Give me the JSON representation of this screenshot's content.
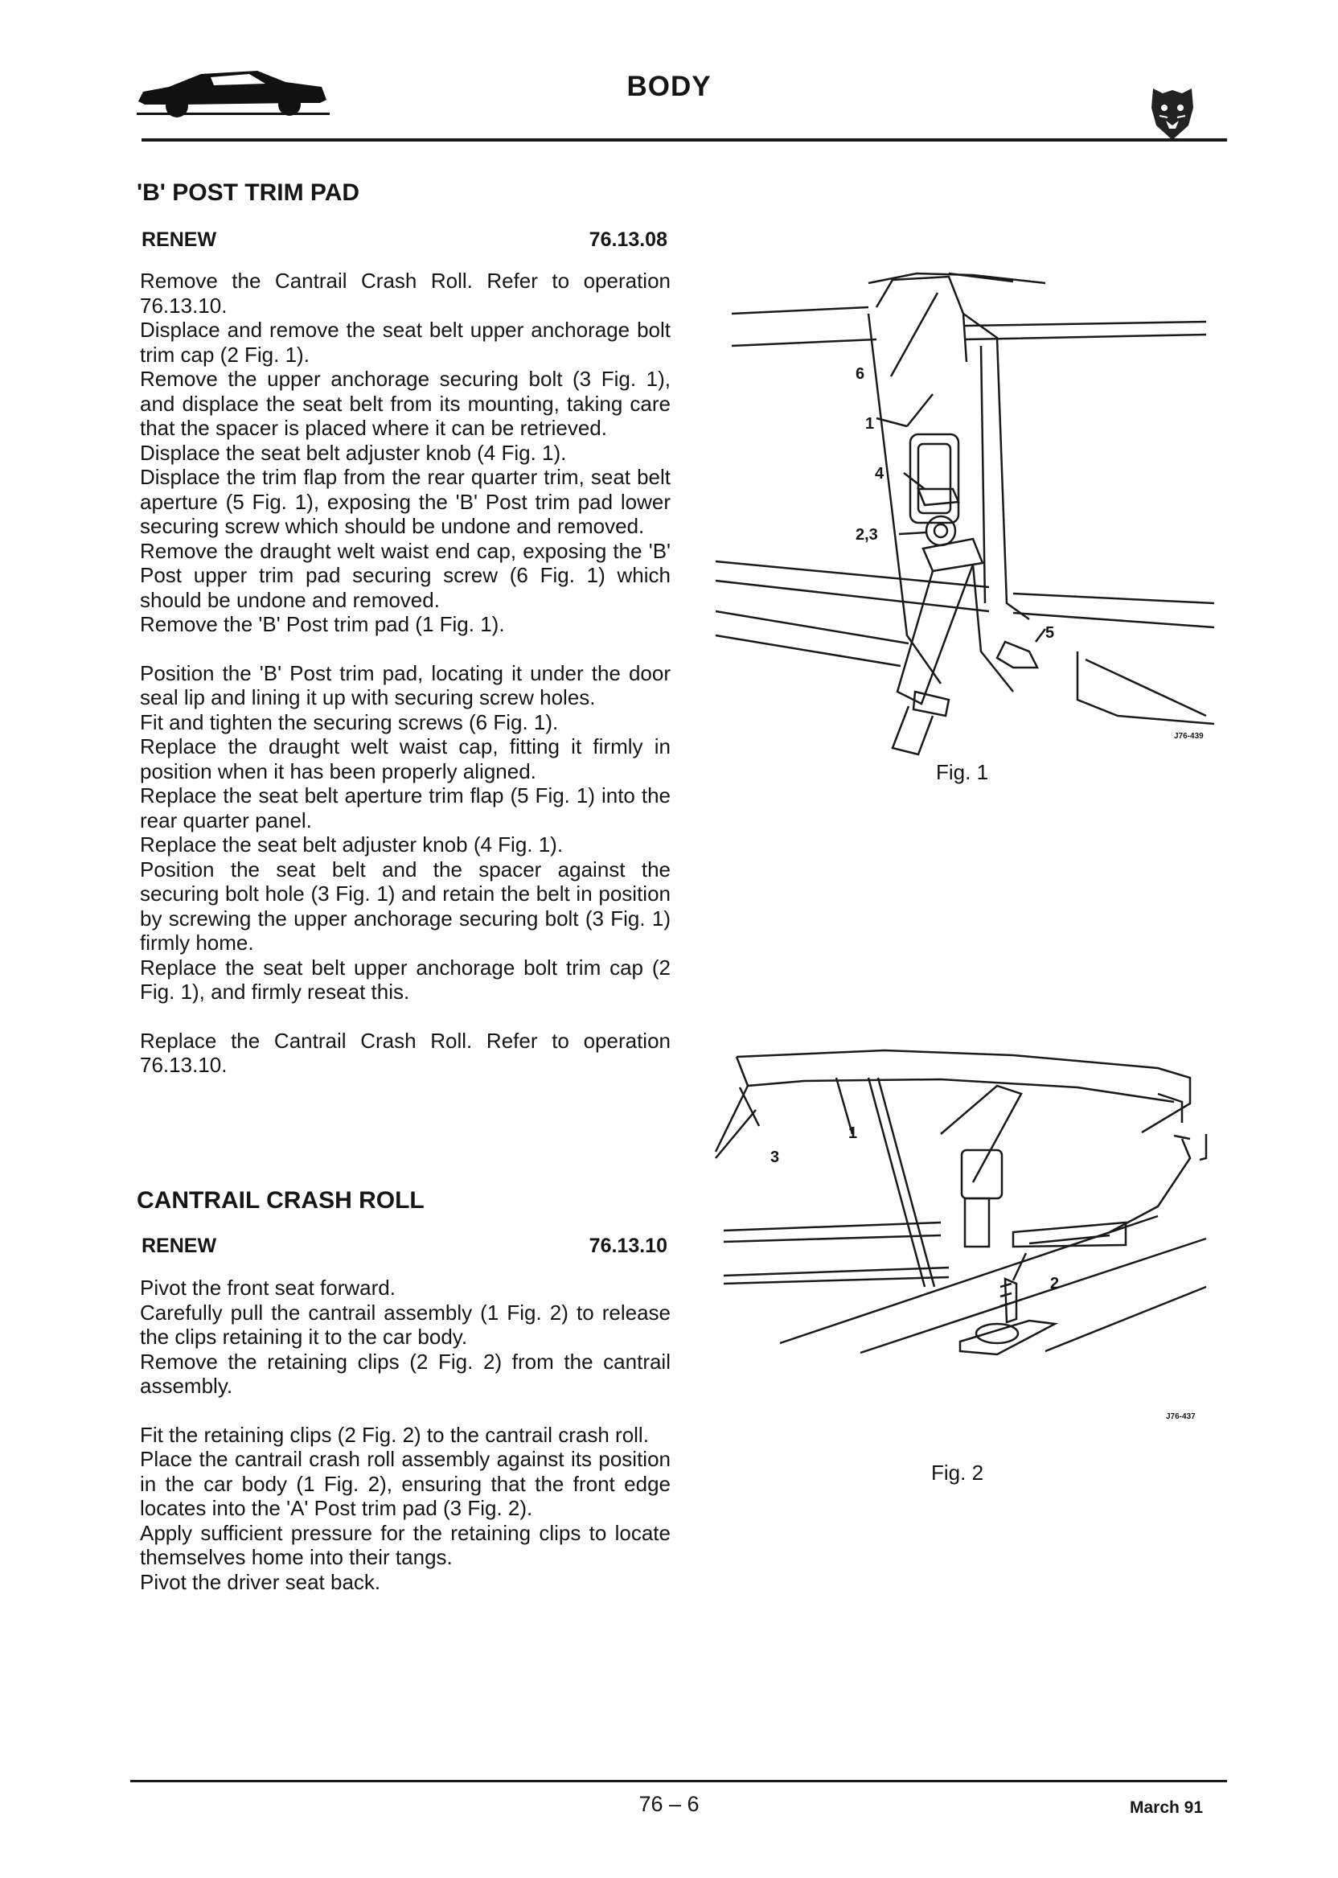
{
  "header": {
    "title": "BODY",
    "car_icon": "car-silhouette-icon",
    "brand_icon": "jaguar-head-icon"
  },
  "sections": [
    {
      "title": "'B' POST TRIM PAD",
      "subtitle": "RENEW",
      "reference": "76.13.08",
      "removal": [
        "Remove the Cantrail Crash Roll. Refer to operation 76.13.10.",
        "Displace and remove the seat belt upper anchorage bolt trim cap (2 Fig. 1).",
        "Remove the upper anchorage securing bolt (3 Fig. 1), and displace the seat belt from its mounting, taking care that the spacer is placed where it can be retrieved.",
        "Displace the seat belt adjuster knob (4 Fig. 1).",
        "Displace the trim flap from the rear quarter trim, seat belt aperture (5 Fig. 1), exposing the 'B' Post trim pad lower securing screw which should be undone and removed.",
        "Remove the draught welt waist end cap, exposing the 'B' Post upper trim pad securing screw (6 Fig. 1) which should be undone and removed.",
        "Remove the 'B' Post trim pad (1 Fig. 1)."
      ],
      "refit": [
        "Position the 'B' Post trim pad, locating it under the door seal lip and lining it up with securing screw holes.",
        "Fit and tighten the securing screws (6 Fig. 1).",
        "Replace the draught welt waist cap, fitting it firmly in position when it has been properly aligned.",
        "Replace the seat belt aperture trim flap (5 Fig. 1) into the rear quarter panel.",
        "Replace the seat belt adjuster knob (4 Fig. 1).",
        "Position the seat belt and the spacer against the securing bolt hole (3 Fig. 1) and retain the belt in position by screwing the upper anchorage securing bolt (3 Fig. 1) firmly home.",
        "Replace the seat belt upper anchorage bolt trim cap (2 Fig. 1), and firmly reseat this."
      ],
      "closing": [
        "Replace the Cantrail Crash Roll. Refer to operation 76.13.10."
      ]
    },
    {
      "title": "CANTRAIL CRASH ROLL",
      "subtitle": "RENEW",
      "reference": "76.13.10",
      "removal": [
        "Pivot the front seat forward.",
        "Carefully pull the cantrail assembly (1 Fig. 2) to release the clips retaining it to the car body.",
        "Remove the retaining clips (2 Fig. 2) from the cantrail assembly."
      ],
      "refit": [
        "Fit the retaining clips (2 Fig. 2) to the cantrail crash roll.",
        "Place the cantrail crash roll assembly against its position in the car body (1 Fig. 2), ensuring that the front edge locates into the 'A' Post trim pad (3 Fig. 2).",
        "Apply sufficient pressure for the retaining clips to locate themselves home into their tangs.",
        "Pivot the driver seat back."
      ]
    }
  ],
  "figures": [
    {
      "caption": "Fig. 1",
      "code": "J76-439",
      "callouts": [
        "6",
        "1",
        "4",
        "2,3",
        "5"
      ]
    },
    {
      "caption": "Fig. 2",
      "code": "J76-437",
      "callouts": [
        "3",
        "1",
        "2"
      ]
    }
  ],
  "footer": {
    "page": "76 – 6",
    "date": "March 91"
  }
}
